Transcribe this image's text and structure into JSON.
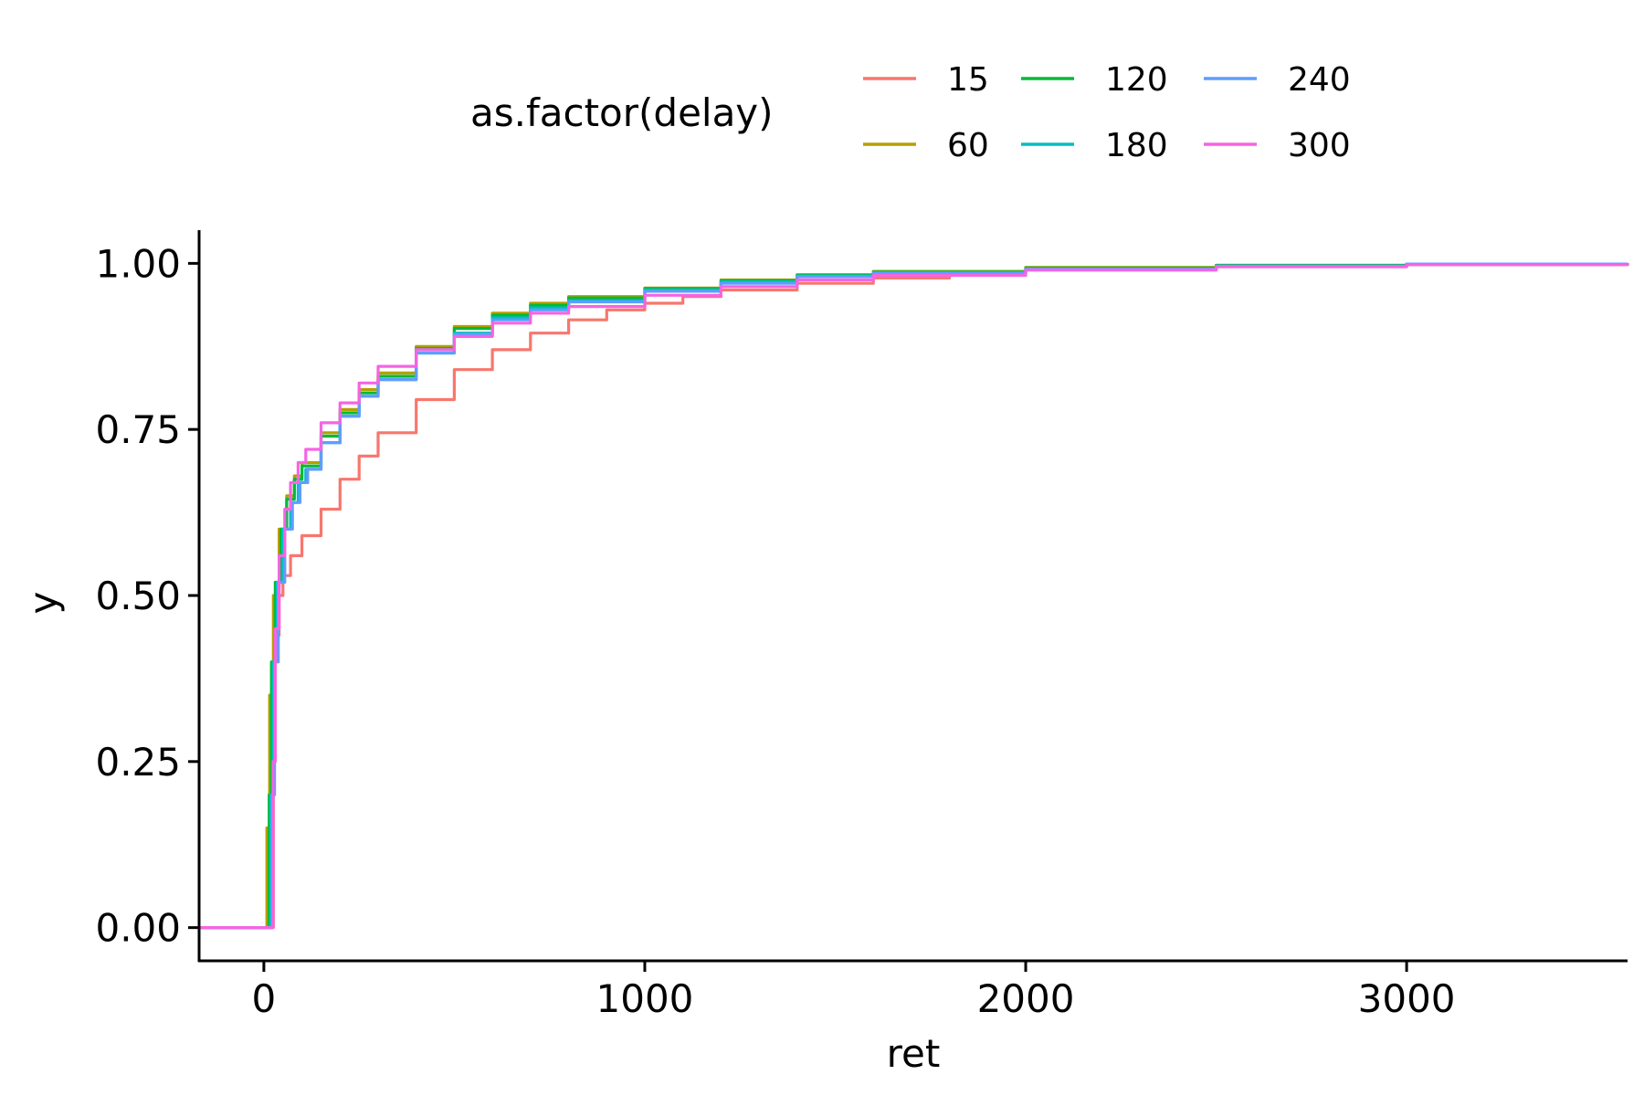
{
  "chart_data": {
    "type": "line",
    "subtype": "ecdf",
    "title": "",
    "xlabel": "ret",
    "ylabel": "y",
    "xlim": [
      -170,
      3580
    ],
    "ylim": [
      -0.05,
      1.05
    ],
    "x_ticks": [
      0,
      1000,
      2000,
      3000
    ],
    "x_tick_labels": [
      "0",
      "1000",
      "2000",
      "3000"
    ],
    "y_ticks": [
      0,
      0.25,
      0.5,
      0.75,
      1
    ],
    "y_tick_labels": [
      "0.00",
      "0.25",
      "0.50",
      "0.75",
      "1.00"
    ],
    "grid": false,
    "legend": {
      "title": "as.factor(delay)",
      "position": "top",
      "columns": 3
    },
    "series": [
      {
        "name": "15",
        "color": "#F8766D",
        "x": [
          -170,
          22,
          25,
          30,
          40,
          50,
          70,
          100,
          150,
          200,
          250,
          300,
          400,
          500,
          600,
          700,
          800,
          900,
          1000,
          1100,
          1200,
          1400,
          1600,
          1800,
          2000,
          2500,
          3000,
          3580
        ],
        "y": [
          0,
          0,
          0.3,
          0.44,
          0.5,
          0.53,
          0.56,
          0.59,
          0.63,
          0.675,
          0.71,
          0.745,
          0.795,
          0.84,
          0.87,
          0.895,
          0.915,
          0.93,
          0.94,
          0.95,
          0.96,
          0.97,
          0.978,
          0.985,
          0.99,
          0.995,
          0.998,
          1
        ]
      },
      {
        "name": "60",
        "color": "#B79F00",
        "x": [
          -170,
          5,
          8,
          15,
          25,
          40,
          60,
          80,
          100,
          150,
          200,
          250,
          300,
          400,
          500,
          600,
          700,
          800,
          1000,
          1200,
          1400,
          1600,
          2000,
          2500,
          3000,
          3580
        ],
        "y": [
          0,
          0,
          0.15,
          0.35,
          0.5,
          0.6,
          0.65,
          0.68,
          0.7,
          0.745,
          0.78,
          0.81,
          0.835,
          0.875,
          0.905,
          0.925,
          0.94,
          0.95,
          0.963,
          0.975,
          0.983,
          0.988,
          0.994,
          0.997,
          0.999,
          1
        ]
      },
      {
        "name": "120",
        "color": "#00BA38",
        "x": [
          -170,
          10,
          14,
          20,
          30,
          45,
          60,
          80,
          100,
          150,
          200,
          250,
          300,
          400,
          500,
          600,
          700,
          800,
          1000,
          1200,
          1400,
          1600,
          2000,
          2500,
          3000,
          3580
        ],
        "y": [
          0,
          0,
          0.2,
          0.4,
          0.52,
          0.6,
          0.645,
          0.675,
          0.695,
          0.74,
          0.775,
          0.805,
          0.83,
          0.872,
          0.902,
          0.922,
          0.937,
          0.948,
          0.962,
          0.974,
          0.982,
          0.987,
          0.993,
          0.997,
          0.999,
          1
        ]
      },
      {
        "name": "180",
        "color": "#00BFC4",
        "x": [
          -170,
          14,
          18,
          25,
          35,
          50,
          70,
          90,
          110,
          150,
          200,
          250,
          300,
          400,
          500,
          600,
          700,
          800,
          1000,
          1200,
          1400,
          1600,
          2000,
          2500,
          3000,
          3580
        ],
        "y": [
          0,
          0,
          0.2,
          0.4,
          0.52,
          0.6,
          0.64,
          0.67,
          0.69,
          0.73,
          0.77,
          0.8,
          0.825,
          0.865,
          0.895,
          0.918,
          0.933,
          0.944,
          0.96,
          0.972,
          0.981,
          0.986,
          0.992,
          0.996,
          0.999,
          1
        ]
      },
      {
        "name": "240",
        "color": "#619CFF",
        "x": [
          -170,
          18,
          22,
          28,
          38,
          55,
          75,
          95,
          115,
          150,
          200,
          250,
          300,
          400,
          500,
          600,
          700,
          800,
          1000,
          1200,
          1400,
          1600,
          2000,
          2500,
          3000,
          3580
        ],
        "y": [
          0,
          0,
          0.2,
          0.4,
          0.52,
          0.6,
          0.64,
          0.67,
          0.69,
          0.73,
          0.77,
          0.8,
          0.825,
          0.865,
          0.893,
          0.915,
          0.93,
          0.942,
          0.958,
          0.97,
          0.98,
          0.985,
          0.991,
          0.996,
          0.999,
          1
        ]
      },
      {
        "name": "300",
        "color": "#F564E3",
        "x": [
          -170,
          20,
          24,
          30,
          40,
          55,
          70,
          90,
          110,
          150,
          200,
          250,
          300,
          400,
          500,
          600,
          700,
          800,
          1000,
          1200,
          1400,
          1600,
          2000,
          2500,
          3000,
          3580
        ],
        "y": [
          0,
          0,
          0.25,
          0.45,
          0.56,
          0.63,
          0.67,
          0.7,
          0.72,
          0.76,
          0.79,
          0.82,
          0.845,
          0.87,
          0.89,
          0.91,
          0.925,
          0.935,
          0.952,
          0.965,
          0.975,
          0.982,
          0.99,
          0.995,
          0.998,
          1
        ]
      }
    ]
  }
}
